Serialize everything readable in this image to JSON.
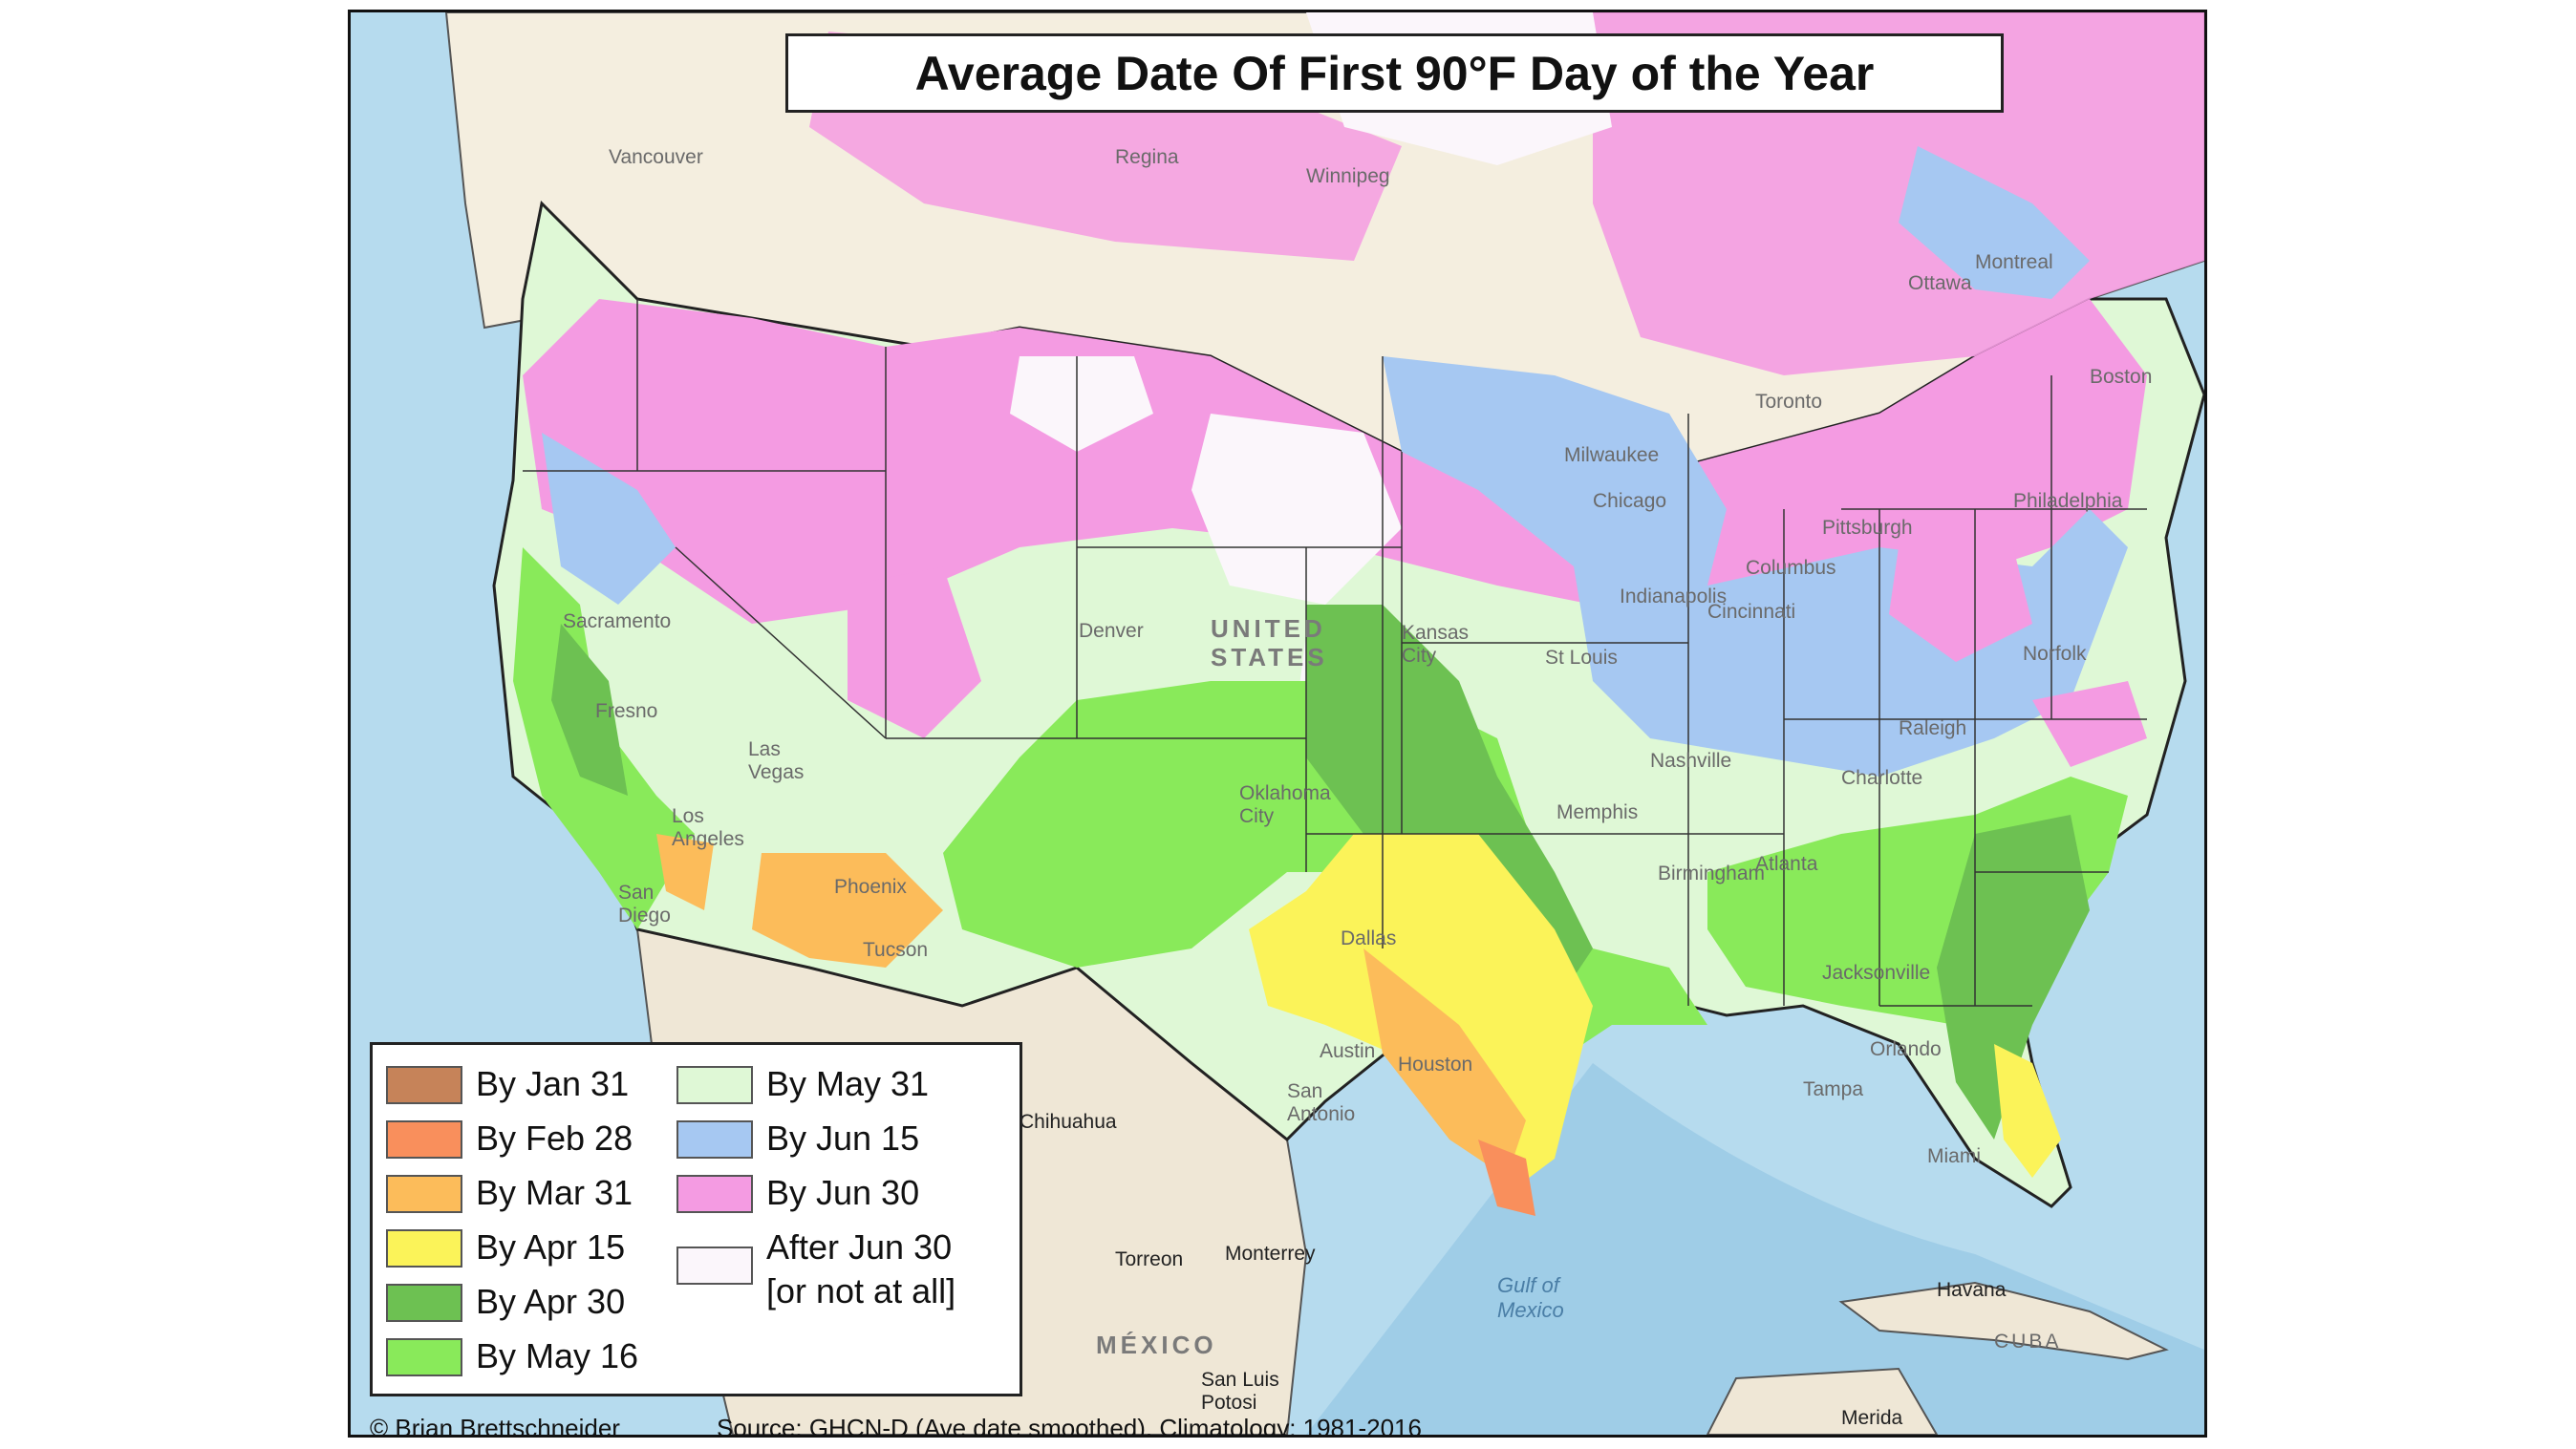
{
  "title": "Average Date Of First 90°F Day of the Year",
  "legend": {
    "items": [
      {
        "label": "By Jan 31",
        "color": "#c68359"
      },
      {
        "label": "By Feb 28",
        "color": "#f98f5c"
      },
      {
        "label": "By Mar 31",
        "color": "#fcbc5a"
      },
      {
        "label": "By Apr 15",
        "color": "#fbf359"
      },
      {
        "label": "By Apr 30",
        "color": "#6dc152"
      },
      {
        "label": "By May 16",
        "color": "#89ea5a"
      },
      {
        "label": "By May 31",
        "color": "#dff8d6"
      },
      {
        "label": "By Jun 15",
        "color": "#a6c8f2"
      },
      {
        "label": "By Jun 30",
        "color": "#f49be2"
      },
      {
        "label": "After Jun 30\n[or not at all]",
        "color": "#fbf6fb"
      }
    ]
  },
  "credit": "© Brian Brettschneider",
  "source": "Source: GHCN-D (Ave date smoothed), Climatology: 1981-2016",
  "basemap_labels": {
    "united_states": "UNITED STATES",
    "mexico": "MÉXICO",
    "gulf": "Gulf of Mexico",
    "cuba": "CUBA",
    "havana": "Havana",
    "chihuahua": "Chihuahua",
    "torreon": "Torreon",
    "monterrey": "Monterrey",
    "san_luis_potosi": "San Luis Potosi",
    "merida": "Merida",
    "denver": "Denver",
    "kansas_city": "Kansas City",
    "oklahoma_city": "Oklahoma City",
    "dallas": "Dallas",
    "austin": "Austin",
    "houston": "Houston",
    "san_antonio": "San Antonio",
    "phoenix": "Phoenix",
    "tucson": "Tucson",
    "los_angeles": "Los Angeles",
    "san_diego": "San Diego",
    "las_vegas": "Las Vegas",
    "sacramento": "Sacramento",
    "fresno": "Fresno",
    "chicago": "Chicago",
    "milwaukee": "Milwaukee",
    "st_louis": "St Louis",
    "indianapolis": "Indianapolis",
    "cincinnati": "Cincinnati",
    "columbus": "Columbus",
    "pittsburgh": "Pittsburgh",
    "nashville": "Nashville",
    "memphis": "Memphis",
    "birmingham": "Birmingham",
    "atlanta": "Atlanta",
    "charlotte": "Charlotte",
    "raleigh": "Raleigh",
    "jacksonville": "Jacksonville",
    "orlando": "Orlando",
    "tampa": "Tampa",
    "miami": "Miami",
    "toronto": "Toronto",
    "montreal": "Montreal",
    "ottawa": "Ottawa",
    "boston": "Boston",
    "philadelphia": "Philadelphia",
    "norfolk": "Norfolk",
    "winnipeg": "Winnipeg",
    "regina": "Regina",
    "vancouver": "Vancouver"
  }
}
